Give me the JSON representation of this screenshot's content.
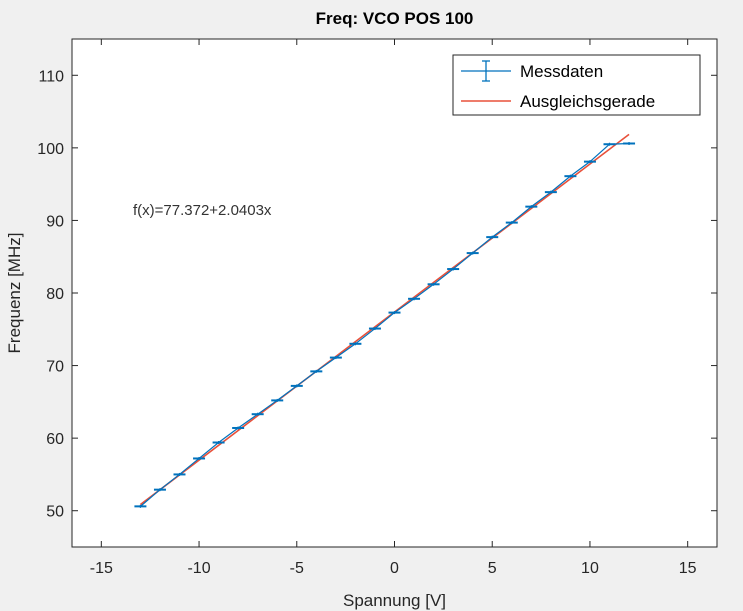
{
  "chart_data": {
    "type": "scatter",
    "title": "Freq: VCO POS 100",
    "xlabel": "Spannung [V]",
    "ylabel": "Frequenz [MHz]",
    "xlim": [
      -16.5,
      16.5
    ],
    "ylim": [
      45,
      115
    ],
    "xticks": [
      -15,
      -10,
      -5,
      0,
      5,
      10,
      15
    ],
    "yticks": [
      50,
      60,
      70,
      80,
      90,
      100,
      110
    ],
    "xtick_labels": [
      "-15",
      "-10",
      "-5",
      "0",
      "5",
      "10",
      "15"
    ],
    "ytick_labels": [
      "50",
      "60",
      "70",
      "80",
      "90",
      "100",
      "110"
    ],
    "grid": false,
    "legend_position": "top-right",
    "annotation": "f(x)=77.372+2.0403x",
    "series": [
      {
        "name": "Messdaten",
        "kind": "errorbar",
        "color": "#0072BD",
        "x": [
          -13,
          -12,
          -11,
          -10,
          -9,
          -8,
          -7,
          -6,
          -5,
          -4,
          -3,
          -2,
          -1,
          0,
          1,
          2,
          3,
          4,
          5,
          6,
          7,
          8,
          9,
          10,
          11,
          12
        ],
        "y": [
          50.6,
          52.9,
          55.0,
          57.2,
          59.4,
          61.4,
          63.3,
          65.2,
          67.2,
          69.2,
          71.1,
          73.0,
          75.1,
          77.3,
          79.2,
          81.2,
          83.3,
          85.5,
          87.7,
          89.7,
          91.9,
          93.9,
          96.1,
          98.1,
          100.5,
          100.6
        ]
      },
      {
        "name": "Ausgleichsgerade",
        "kind": "line",
        "color": "#e8503a",
        "intercept": 77.372,
        "slope": 2.0403,
        "x_range": [
          -13,
          12
        ]
      }
    ]
  }
}
